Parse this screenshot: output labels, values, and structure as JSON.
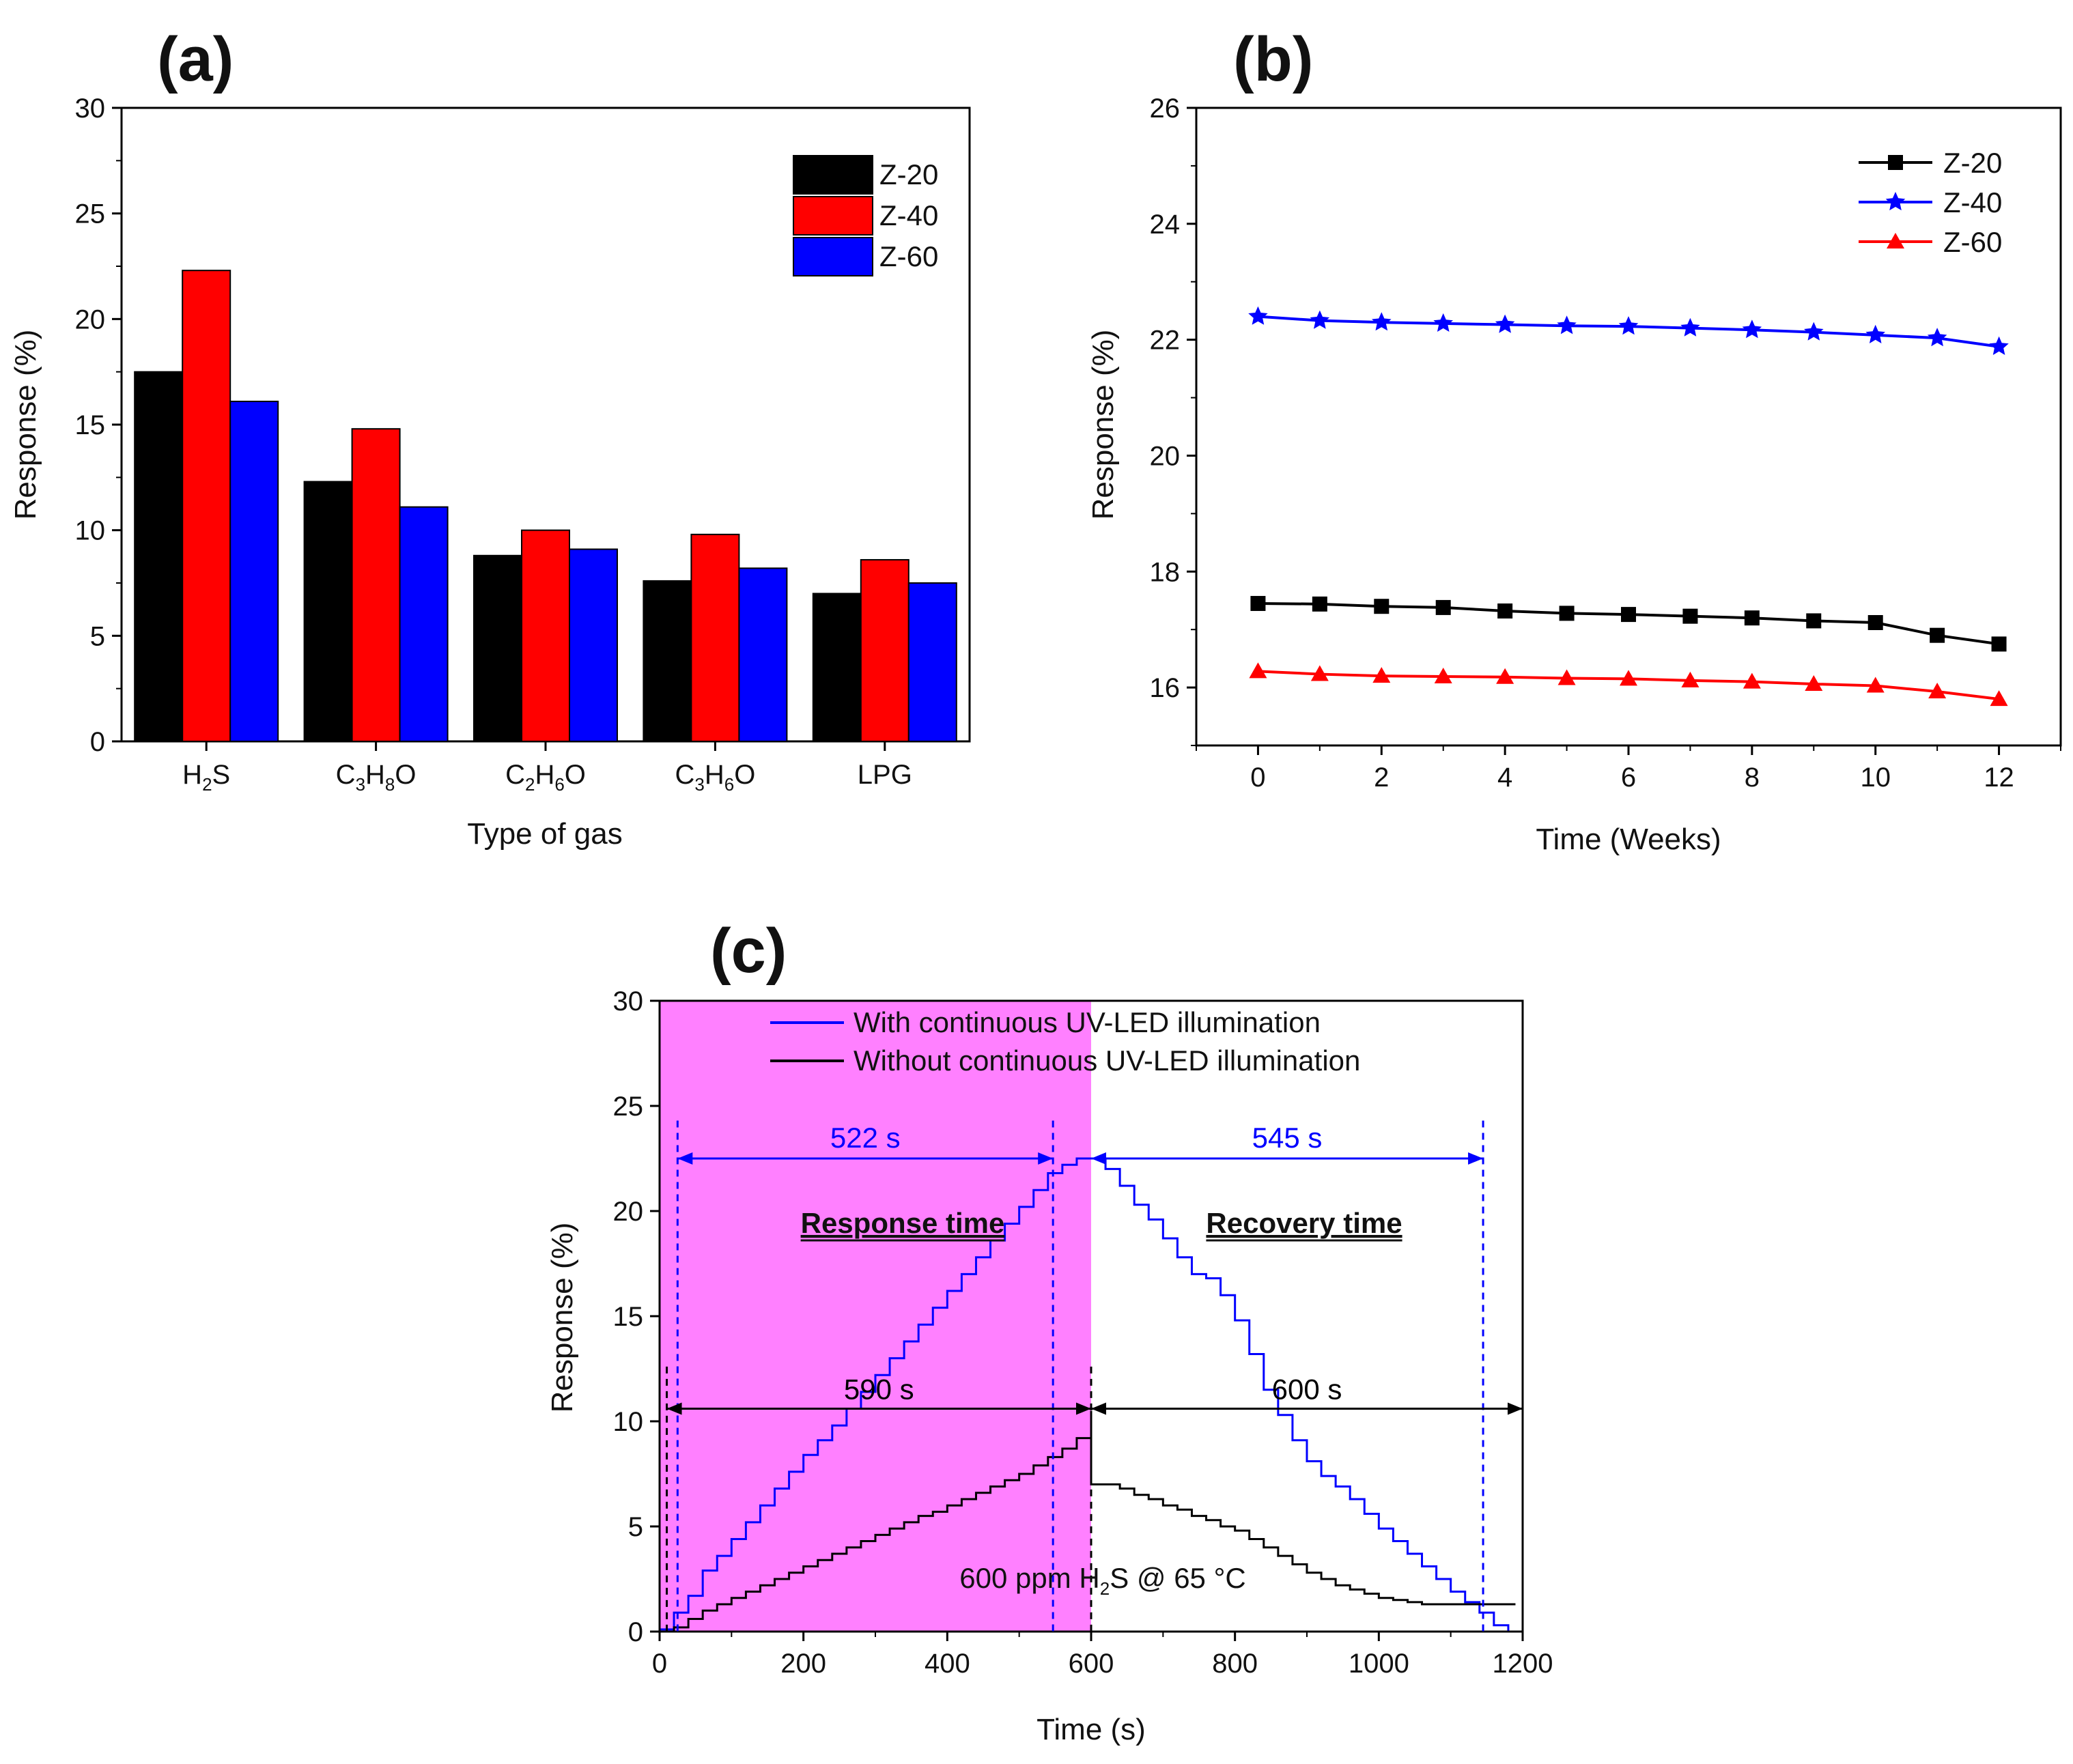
{
  "chart_data": [
    {
      "panel": "(a)",
      "type": "bar",
      "categories": [
        "H2S",
        "C3H8O",
        "C2H6O",
        "C3H6O",
        "LPG"
      ],
      "category_labels": [
        [
          {
            "t": "H",
            "s": false
          },
          {
            "t": "2",
            "s": true
          },
          {
            "t": "S",
            "s": false
          }
        ],
        [
          {
            "t": "C",
            "s": false
          },
          {
            "t": "3",
            "s": true
          },
          {
            "t": "H",
            "s": false
          },
          {
            "t": "8",
            "s": true
          },
          {
            "t": "O",
            "s": false
          }
        ],
        [
          {
            "t": "C",
            "s": false
          },
          {
            "t": "2",
            "s": true
          },
          {
            "t": "H",
            "s": false
          },
          {
            "t": "6",
            "s": true
          },
          {
            "t": "O",
            "s": false
          }
        ],
        [
          {
            "t": "C",
            "s": false
          },
          {
            "t": "3",
            "s": true
          },
          {
            "t": "H",
            "s": false
          },
          {
            "t": "6",
            "s": true
          },
          {
            "t": "O",
            "s": false
          }
        ],
        [
          {
            "t": "LPG",
            "s": false
          }
        ]
      ],
      "series": [
        {
          "name": "Z-20",
          "color": "#000000",
          "values": [
            17.5,
            12.3,
            8.8,
            7.6,
            7.0
          ]
        },
        {
          "name": "Z-40",
          "color": "#ff0000",
          "values": [
            22.3,
            14.8,
            10.0,
            9.8,
            8.6
          ]
        },
        {
          "name": "Z-60",
          "color": "#0000ff",
          "values": [
            16.1,
            11.1,
            9.1,
            8.2,
            7.5
          ]
        }
      ],
      "xlabel": "Type of gas",
      "ylabel": "Response (%)",
      "ylim": [
        0,
        30
      ],
      "yticks": [
        0,
        5,
        10,
        15,
        20,
        25,
        30
      ],
      "legend": "top-right"
    },
    {
      "panel": "(b)",
      "type": "line",
      "x": [
        0,
        1,
        2,
        3,
        4,
        5,
        6,
        7,
        8,
        9,
        10,
        11,
        12
      ],
      "series": [
        {
          "name": "Z-20",
          "color": "#000000",
          "marker": "square",
          "values": [
            17.45,
            17.44,
            17.4,
            17.38,
            17.32,
            17.28,
            17.26,
            17.23,
            17.2,
            17.15,
            17.12,
            16.9,
            16.75
          ]
        },
        {
          "name": "Z-40",
          "color": "#0000ff",
          "marker": "star",
          "values": [
            22.4,
            22.33,
            22.3,
            22.28,
            22.26,
            22.24,
            22.23,
            22.2,
            22.17,
            22.13,
            22.08,
            22.03,
            21.88
          ]
        },
        {
          "name": "Z-60",
          "color": "#ff0000",
          "marker": "triangle",
          "values": [
            16.28,
            16.23,
            16.2,
            16.19,
            16.18,
            16.16,
            16.15,
            16.12,
            16.1,
            16.06,
            16.03,
            15.93,
            15.8
          ]
        }
      ],
      "xlabel": "Time (Weeks)",
      "ylabel": "Response (%)",
      "xlim": [
        -1,
        13
      ],
      "ylim": [
        15,
        26
      ],
      "xticks": [
        0,
        2,
        4,
        6,
        8,
        10,
        12
      ],
      "yticks": [
        16,
        18,
        20,
        22,
        24,
        26
      ],
      "legend": "top-right"
    },
    {
      "panel": "(c)",
      "type": "line",
      "series": [
        {
          "name": "With continuous UV-LED illumination",
          "color": "#0000ff",
          "x": [
            0,
            20,
            40,
            60,
            80,
            100,
            120,
            140,
            160,
            180,
            200,
            220,
            240,
            260,
            280,
            300,
            320,
            340,
            360,
            380,
            400,
            420,
            440,
            460,
            480,
            500,
            520,
            540,
            560,
            580,
            600,
            620,
            640,
            660,
            680,
            700,
            720,
            740,
            760,
            780,
            800,
            820,
            840,
            860,
            880,
            900,
            920,
            940,
            960,
            980,
            1000,
            1020,
            1040,
            1060,
            1080,
            1100,
            1120,
            1140,
            1160,
            1180,
            1190
          ],
          "y": [
            0.1,
            0.9,
            1.7,
            2.9,
            3.6,
            4.4,
            5.2,
            6.0,
            6.8,
            7.6,
            8.4,
            9.1,
            9.8,
            10.6,
            11.4,
            12.2,
            13.0,
            13.8,
            14.6,
            15.4,
            16.2,
            17.0,
            17.8,
            18.6,
            19.4,
            20.2,
            21.0,
            21.8,
            22.2,
            22.5,
            22.5,
            22.0,
            21.2,
            20.3,
            19.6,
            18.7,
            17.8,
            17.0,
            16.8,
            16.0,
            14.8,
            13.2,
            11.5,
            10.3,
            9.1,
            8.1,
            7.4,
            6.9,
            6.3,
            5.6,
            4.9,
            4.3,
            3.7,
            3.1,
            2.5,
            1.9,
            1.4,
            0.9,
            0.3,
            0.0,
            0.0
          ]
        },
        {
          "name": "Without continuous UV-LED illumination",
          "color": "#000000",
          "x": [
            0,
            20,
            40,
            60,
            80,
            100,
            120,
            140,
            160,
            180,
            200,
            220,
            240,
            260,
            280,
            300,
            320,
            340,
            360,
            380,
            400,
            420,
            440,
            460,
            480,
            500,
            520,
            540,
            560,
            580,
            600,
            600,
            620,
            640,
            660,
            680,
            700,
            720,
            740,
            760,
            780,
            800,
            820,
            840,
            860,
            880,
            900,
            920,
            940,
            960,
            980,
            1000,
            1020,
            1040,
            1060,
            1080,
            1100,
            1120,
            1140,
            1160,
            1180,
            1190
          ],
          "y": [
            0.0,
            0.2,
            0.6,
            1.0,
            1.3,
            1.6,
            1.9,
            2.2,
            2.5,
            2.8,
            3.1,
            3.4,
            3.7,
            4.0,
            4.3,
            4.6,
            4.9,
            5.2,
            5.5,
            5.7,
            6.0,
            6.3,
            6.6,
            6.9,
            7.2,
            7.5,
            7.9,
            8.3,
            8.7,
            9.2,
            10.5,
            7.0,
            7.0,
            6.8,
            6.5,
            6.3,
            6.0,
            5.8,
            5.5,
            5.3,
            5.0,
            4.8,
            4.4,
            4.0,
            3.6,
            3.2,
            2.8,
            2.5,
            2.2,
            2.0,
            1.8,
            1.6,
            1.5,
            1.4,
            1.3,
            1.3,
            1.3,
            1.3,
            1.3,
            1.3,
            1.3,
            1.3
          ]
        }
      ],
      "shaded_region": {
        "x_from": 0,
        "x_to": 600,
        "color": "#ff80ff"
      },
      "annotations": {
        "blue_response": {
          "text": "522 s",
          "x_from": 25,
          "x_to": 547,
          "y": 22.5
        },
        "blue_recovery": {
          "text": "545 s",
          "x_from": 600,
          "x_to": 1145,
          "y": 22.5
        },
        "black_response": {
          "text": "590 s",
          "x_from": 10,
          "x_to": 600,
          "y": 10.6
        },
        "black_recovery": {
          "text": "600 s",
          "x_from": 600,
          "x_to": 1200,
          "y": 10.6
        },
        "response_time_label": "Response time",
        "recovery_time_label": "Recovery time",
        "condition_parts": [
          {
            "t": "600 ppm H",
            "s": false
          },
          {
            "t": "2",
            "s": true
          },
          {
            "t": "S @ 65 °C",
            "s": false
          }
        ]
      },
      "xlabel": "Time (s)",
      "ylabel": "Response (%)",
      "xlim": [
        0,
        1200
      ],
      "ylim": [
        0,
        30
      ],
      "xticks": [
        0,
        200,
        400,
        600,
        800,
        1000,
        1200
      ],
      "yticks": [
        0,
        5,
        10,
        15,
        20,
        25,
        30
      ],
      "legend": "top-left"
    }
  ]
}
